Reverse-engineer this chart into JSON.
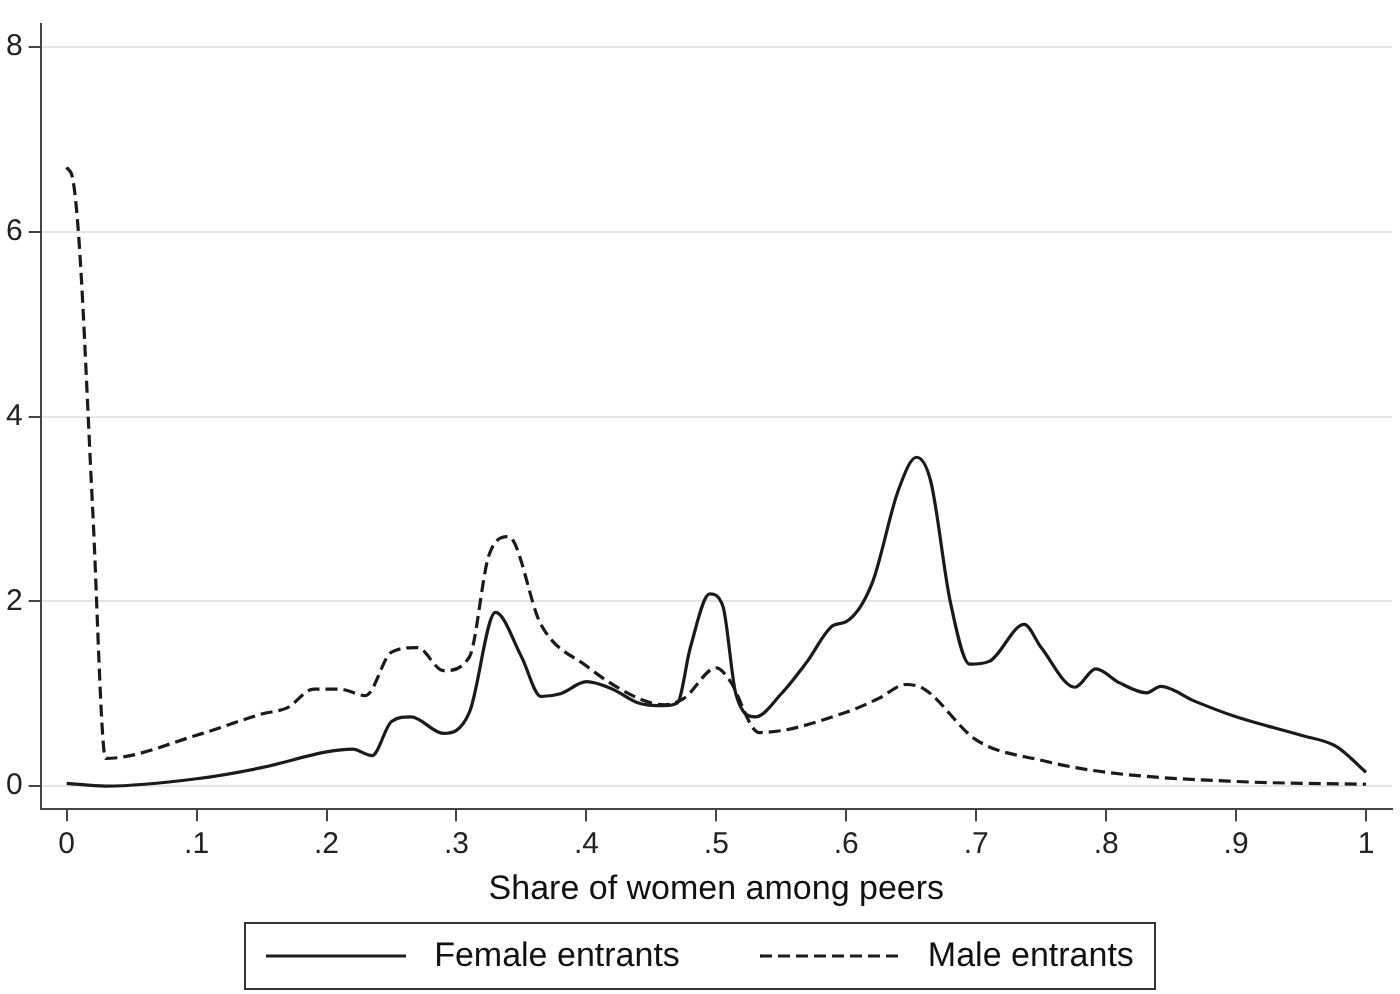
{
  "chart_data": {
    "type": "line",
    "xlabel": "Share of women among peers",
    "xlim": [
      -0.02,
      1.02
    ],
    "ylim": [
      -0.25,
      8.25
    ],
    "xticks": [
      0,
      {
        "value": 0.1,
        "label": ".1"
      },
      {
        "value": 0.2,
        "label": ".2"
      },
      {
        "value": 0.3,
        "label": ".3"
      },
      {
        "value": 0.4,
        "label": ".4"
      },
      {
        "value": 0.5,
        "label": ".5"
      },
      {
        "value": 0.6,
        "label": ".6"
      },
      {
        "value": 0.7,
        "label": ".7"
      },
      {
        "value": 0.8,
        "label": ".8"
      },
      {
        "value": 0.9,
        "label": ".9"
      },
      1
    ],
    "yticks": [
      0,
      2,
      4,
      6,
      8
    ],
    "grid": "y",
    "legend": "bottom",
    "marker": "none",
    "series": [
      {
        "name": "Female entrants",
        "color": "#1a1a1a",
        "line_style": "solid",
        "x": [
          0,
          0.03,
          0.1,
          0.15,
          0.2,
          0.22,
          0.235,
          0.25,
          0.265,
          0.29,
          0.31,
          0.33,
          0.35,
          0.365,
          0.38,
          0.4,
          0.42,
          0.44,
          0.46,
          0.47,
          0.48,
          0.495,
          0.505,
          0.515,
          0.53,
          0.55,
          0.57,
          0.59,
          0.6,
          0.62,
          0.64,
          0.654,
          0.665,
          0.68,
          0.695,
          0.71,
          0.737,
          0.75,
          0.776,
          0.792,
          0.81,
          0.831,
          0.842,
          0.868,
          0.9,
          0.95,
          0.977,
          1.0
        ],
        "values": [
          0.03,
          0.0,
          0.08,
          0.2,
          0.37,
          0.4,
          0.33,
          0.7,
          0.75,
          0.57,
          0.8,
          1.88,
          1.4,
          0.97,
          1.0,
          1.13,
          1.05,
          0.9,
          0.87,
          0.9,
          1.5,
          2.08,
          1.95,
          1.0,
          0.75,
          1.0,
          1.35,
          1.74,
          1.78,
          2.2,
          3.2,
          3.56,
          3.3,
          2.0,
          1.32,
          1.35,
          1.75,
          1.5,
          1.07,
          1.27,
          1.12,
          1.01,
          1.08,
          0.92,
          0.75,
          0.55,
          0.43,
          0.15
        ]
      },
      {
        "name": "Male entrants",
        "color": "#1a1a1a",
        "line_style": "dashed",
        "x": [
          0,
          0.005,
          0.01,
          0.02,
          0.03,
          0.1,
          0.15,
          0.17,
          0.19,
          0.21,
          0.23,
          0.25,
          0.27,
          0.29,
          0.31,
          0.325,
          0.34,
          0.365,
          0.4,
          0.44,
          0.46,
          0.475,
          0.5,
          0.51,
          0.533,
          0.6,
          0.625,
          0.646,
          0.66,
          0.7,
          0.75,
          0.8,
          0.9,
          1.0
        ],
        "values": [
          6.7,
          6.55,
          5.8,
          3.0,
          0.3,
          0.55,
          0.78,
          0.85,
          1.05,
          1.05,
          0.98,
          1.45,
          1.5,
          1.25,
          1.4,
          2.5,
          2.7,
          1.75,
          1.3,
          0.95,
          0.88,
          0.95,
          1.28,
          1.15,
          0.58,
          0.8,
          0.95,
          1.1,
          1.05,
          0.5,
          0.28,
          0.15,
          0.05,
          0.02
        ]
      }
    ]
  }
}
